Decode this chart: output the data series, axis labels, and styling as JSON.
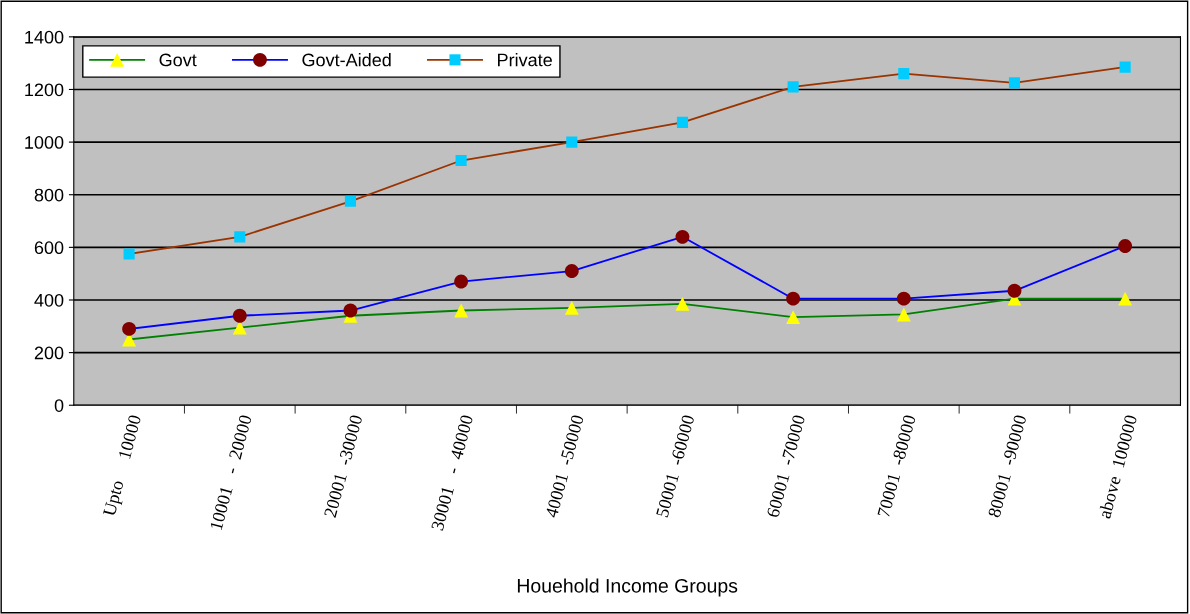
{
  "chart_data": {
    "type": "line",
    "xlabel": "Houehold Income Groups",
    "categories": [
      "Upto     10000",
      "10001   -  20000",
      "20001  -30000",
      "30001   -  40000",
      "40001  -50000",
      "50001  -60000",
      "60001  -70000",
      "70001  -80000",
      "80001  -90000",
      "above  100000"
    ],
    "series": [
      {
        "name": "Govt",
        "color": "#008000",
        "marker": "triangle",
        "colors": [
          "#ffff00",
          "#ffff00",
          "#ffff00",
          "#ffff00",
          "#ffff00",
          "#ffff00",
          "#ffff00",
          "#ffff00",
          "#ffff00",
          "#ffff00"
        ],
        "values": [
          250,
          295,
          340,
          360,
          370,
          385,
          335,
          345,
          405,
          405
        ]
      },
      {
        "name": "Govt-Aided",
        "color": "#0000ff",
        "marker": "circle",
        "colors": [
          "#800000",
          "#800000",
          "#800000",
          "#800000",
          "#800000",
          "#800000",
          "#800000",
          "#800000",
          "#800000",
          "#800000"
        ],
        "values": [
          290,
          340,
          360,
          470,
          510,
          640,
          405,
          405,
          435,
          605
        ]
      },
      {
        "name": "Private",
        "color": "#993300",
        "marker": "square",
        "colors": [
          "#00ccff",
          "#00ccff",
          "#00ccff",
          "#00ccff",
          "#00ccff",
          "#00ccff",
          "#00ccff",
          "#00ccff",
          "#00ccff",
          "#00ccff"
        ],
        "values": [
          575,
          640,
          775,
          930,
          1000,
          1075,
          1210,
          1260,
          1225,
          1285
        ]
      }
    ],
    "ylim": [
      0,
      1400
    ],
    "yticks": [
      0,
      200,
      400,
      600,
      800,
      1000,
      1200,
      1400
    ],
    "grid": "y",
    "legend": "top left"
  }
}
